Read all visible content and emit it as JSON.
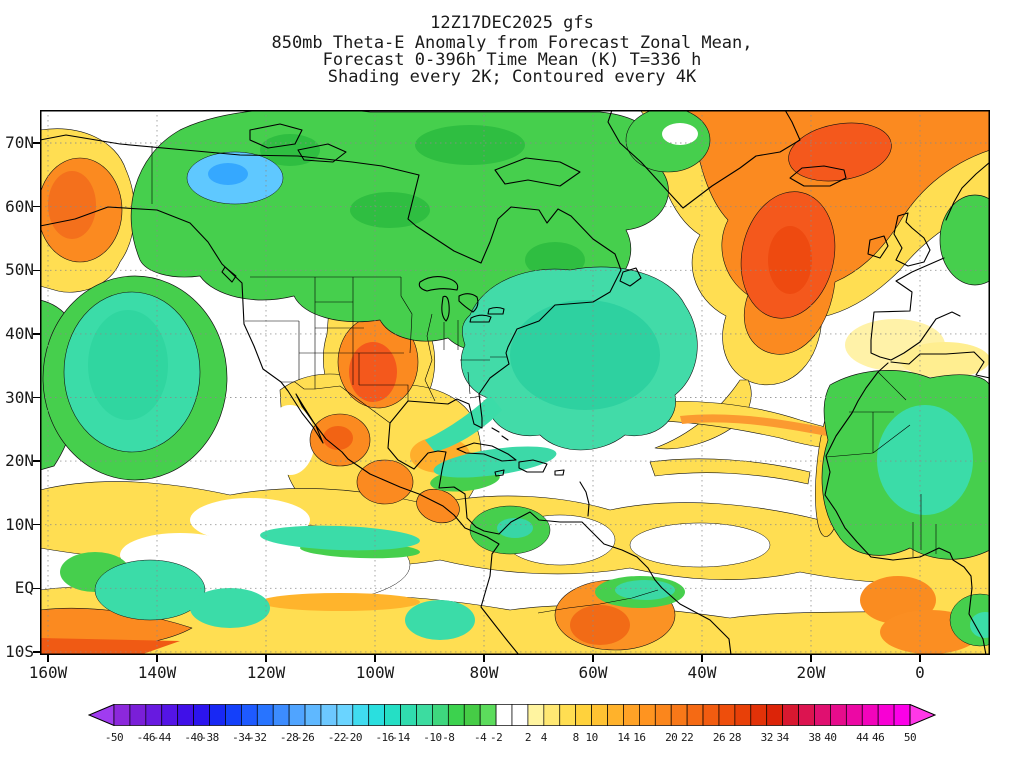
{
  "header": {
    "lines": [
      "12Z17DEC2025 gfs",
      "850mb Theta-E Anomaly from Forecast Zonal Mean,",
      "Forecast 0-396h Time Mean (K) T=336 h",
      "Shading every 2K; Contoured every 4K"
    ]
  },
  "map": {
    "lat_labels": [
      "70N",
      "60N",
      "50N",
      "40N",
      "30N",
      "20N",
      "10N",
      "EQ",
      "10S"
    ],
    "lon_labels": [
      "160W",
      "140W",
      "120W",
      "100W",
      "80W",
      "60W",
      "40W",
      "20W",
      "0"
    ]
  },
  "colorbar": {
    "min": -50,
    "max": 50,
    "interval": 2,
    "tick_labels": [
      "-50",
      "-46",
      "-44",
      "-40",
      "-38",
      "-34",
      "-32",
      "-28",
      "-26",
      "-22",
      "-20",
      "-16",
      "-14",
      "-10",
      "-8",
      "-4",
      "-2",
      "2",
      "4",
      "8",
      "10",
      "14",
      "16",
      "20",
      "22",
      "26",
      "28",
      "32",
      "34",
      "38",
      "40",
      "44",
      "46",
      "50"
    ],
    "segment_colors": [
      "#8C28DC",
      "#7A1FD8",
      "#681AE0",
      "#5414E6",
      "#4010E8",
      "#2C14EE",
      "#1828F4",
      "#1440FA",
      "#1E5AFF",
      "#2874FF",
      "#3C8CFF",
      "#50A4FF",
      "#5FB8FF",
      "#6CC8FF",
      "#6AD4FF",
      "#40DCF0",
      "#2ADFDF",
      "#25DFC5",
      "#30DCAE",
      "#3CDCA0",
      "#3ED77E",
      "#3CD24E",
      "#46CC46",
      "#5CDC5C",
      "#FFFFFF",
      "#FFFFFF",
      "#FFF4A0",
      "#FFE873",
      "#FFDE52",
      "#FFD23C",
      "#FFC232",
      "#FFB22B",
      "#FFA226",
      "#FF9420",
      "#FB861C",
      "#F87818",
      "#F56A14",
      "#F25C10",
      "#EE4E0C",
      "#E84008",
      "#E23208",
      "#DC2408",
      "#D81830",
      "#DC1450",
      "#E01070",
      "#E60C8C",
      "#EC08A4",
      "#F204BC",
      "#F800D4",
      "#FC00E8"
    ],
    "left_arrow_color": "#A03CF0",
    "right_arrow_color": "#FF38E8"
  },
  "meta": {
    "units": "K",
    "shading_interval": "2K",
    "contour_interval": "4K"
  }
}
